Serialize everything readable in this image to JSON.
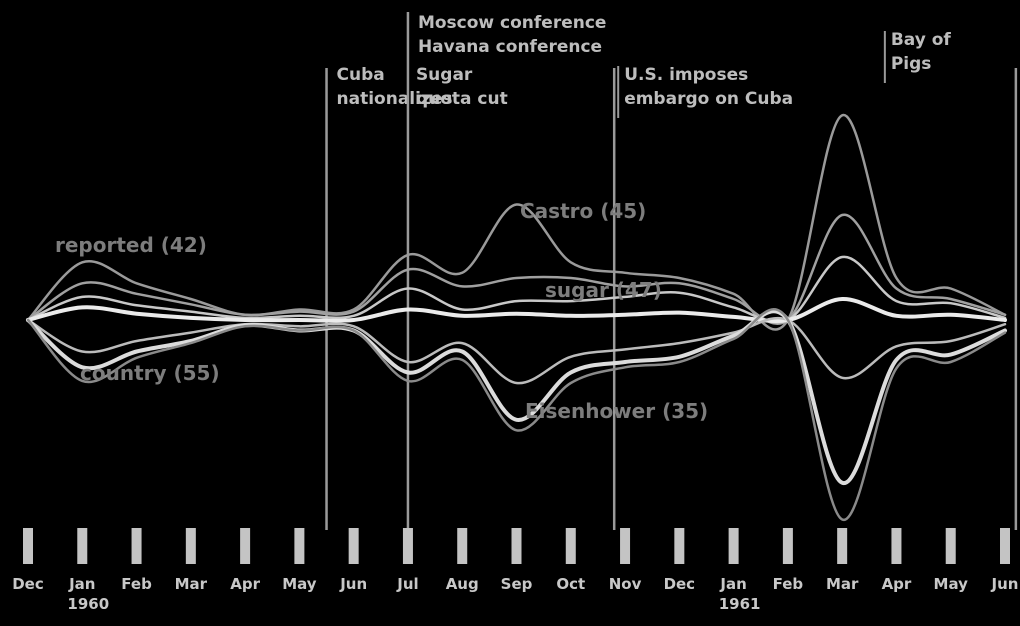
{
  "chart_data": {
    "type": "area",
    "title": "",
    "xlabel": "",
    "ylabel": "",
    "grid": false,
    "x": [
      "Dec",
      "Jan",
      "Feb",
      "Mar",
      "Apr",
      "May",
      "Jun",
      "Jul",
      "Aug",
      "Sep",
      "Oct",
      "Nov",
      "Dec",
      "Jan",
      "Feb",
      "Mar",
      "Apr",
      "May",
      "Jun"
    ],
    "year_labels": [
      {
        "after_index": 1,
        "label": "1960"
      },
      {
        "after_index": 13,
        "label": "1961"
      }
    ],
    "events": [
      {
        "index": 5.5,
        "lines": [
          "Cuba",
          "nationalizes"
        ]
      },
      {
        "index": 7,
        "lines": [
          "Sugar",
          "quota cut"
        ]
      },
      {
        "index": 7,
        "lines": [
          "Moscow conference",
          "Havana conference"
        ]
      },
      {
        "index": 10.8,
        "lines": [
          "U.S. imposes",
          "embargo on Cuba"
        ]
      },
      {
        "index": 18.2,
        "lines": [
          "Bay of",
          "Pigs"
        ]
      }
    ],
    "series": [
      {
        "name": "",
        "label": "reported (42)",
        "color": "#9a9a9a",
        "values": [
          0,
          0.55,
          0.35,
          0.2,
          0.05,
          0.1,
          0.1,
          0.62,
          0.45,
          1.1,
          0.55,
          0.45,
          0.4,
          0.25,
          0,
          1.95,
          0.4,
          0.3,
          0.05
        ]
      },
      {
        "name": "",
        "label": "Castro (45)",
        "color": "#a0a0a0",
        "values": [
          0,
          0.35,
          0.25,
          0.15,
          0.05,
          0.08,
          0.08,
          0.48,
          0.32,
          0.4,
          0.4,
          0.32,
          0.35,
          0.2,
          0,
          1.0,
          0.3,
          0.2,
          0.05
        ]
      },
      {
        "name": "",
        "label": "sugar (47)",
        "color": "#c8c8c8",
        "values": [
          0,
          0.22,
          0.14,
          0.08,
          0.02,
          0.04,
          0.04,
          0.3,
          0.1,
          0.18,
          0.18,
          0.22,
          0.26,
          0.12,
          0,
          0.6,
          0.18,
          0.16,
          0.02
        ]
      },
      {
        "name": "",
        "label": "",
        "color": "#ebebeb",
        "values": [
          0,
          0.12,
          0.06,
          0.02,
          0,
          0,
          0,
          0.1,
          0.04,
          0.06,
          0.04,
          0.05,
          0.07,
          0.03,
          0,
          0.2,
          0.04,
          0.05,
          0
        ]
      },
      {
        "name": "",
        "label": "country (55)",
        "color": "#bbbbbb",
        "values": [
          0,
          -0.3,
          -0.2,
          -0.12,
          -0.04,
          -0.06,
          -0.06,
          -0.4,
          -0.22,
          -0.6,
          -0.35,
          -0.28,
          -0.22,
          -0.12,
          0,
          -0.55,
          -0.25,
          -0.2,
          -0.04
        ]
      },
      {
        "name": "",
        "label": "Eisenhower (35)",
        "color": "#dcdcdc",
        "values": [
          0,
          -0.45,
          -0.3,
          -0.2,
          -0.05,
          -0.1,
          -0.1,
          -0.5,
          -0.3,
          -0.95,
          -0.5,
          -0.4,
          -0.35,
          -0.15,
          0,
          -1.55,
          -0.38,
          -0.33,
          -0.1
        ]
      },
      {
        "name": "",
        "label": "",
        "color": "#8a8a8a",
        "values": [
          0,
          -0.58,
          -0.36,
          -0.22,
          -0.06,
          -0.1,
          -0.1,
          -0.58,
          -0.38,
          -1.05,
          -0.6,
          -0.45,
          -0.4,
          -0.18,
          0,
          -1.9,
          -0.46,
          -0.4,
          -0.12
        ]
      }
    ]
  }
}
